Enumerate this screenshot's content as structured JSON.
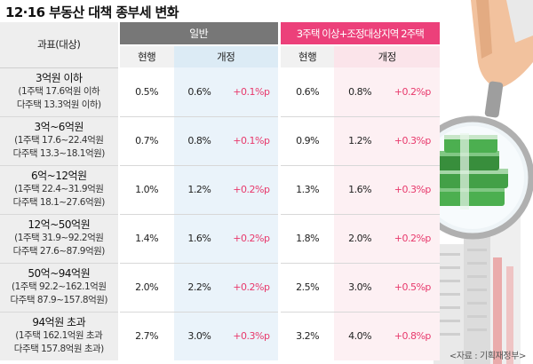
{
  "title": "12·16 부동산 대책 종부세 변화",
  "header": {
    "bracket_label": "과표(대상)",
    "group_general": "일반",
    "group_multi": "3주택 이상+조정대상지역 2주택",
    "current": "현행",
    "revised": "개정"
  },
  "rows": [
    {
      "main": "3억원 이하",
      "sub1": "(1주택 17.6억원 이하",
      "sub2": "다주택 13.3억원 이하)",
      "g_cur": "0.5%",
      "g_new": "0.6%",
      "g_chg": "+0.1%p",
      "m_cur": "0.6%",
      "m_new": "0.8%",
      "m_chg": "+0.2%p"
    },
    {
      "main": "3억~6억원",
      "sub1": "(1주택 17.6~22.4억원",
      "sub2": "다주택 13.3~18.1억원)",
      "g_cur": "0.7%",
      "g_new": "0.8%",
      "g_chg": "+0.1%p",
      "m_cur": "0.9%",
      "m_new": "1.2%",
      "m_chg": "+0.3%p"
    },
    {
      "main": "6억~12억원",
      "sub1": "(1주택 22.4~31.9억원",
      "sub2": "다주택 18.1~27.6억원)",
      "g_cur": "1.0%",
      "g_new": "1.2%",
      "g_chg": "+0.2%p",
      "m_cur": "1.3%",
      "m_new": "1.6%",
      "m_chg": "+0.3%p"
    },
    {
      "main": "12억~50억원",
      "sub1": "(1주택 31.9~92.2억원",
      "sub2": "다주택 27.6~87.9억원)",
      "g_cur": "1.4%",
      "g_new": "1.6%",
      "g_chg": "+0.2%p",
      "m_cur": "1.8%",
      "m_new": "2.0%",
      "m_chg": "+0.2%p"
    },
    {
      "main": "50억~94억원",
      "sub1": "(1주택 92.2~162.1억원",
      "sub2": "다주택 87.9~157.8억원)",
      "g_cur": "2.0%",
      "g_new": "2.2%",
      "g_chg": "+0.2%p",
      "m_cur": "2.5%",
      "m_new": "3.0%",
      "m_chg": "+0.5%p"
    },
    {
      "main": "94억원 초과",
      "sub1": "(1주택 162.1억원 초과",
      "sub2": "다주택 157.8억원 초과)",
      "g_cur": "2.7%",
      "g_new": "3.0%",
      "g_chg": "+0.3%p",
      "m_cur": "3.2%",
      "m_new": "4.0%",
      "m_chg": "+0.8%p"
    }
  ],
  "source": "<자료 : 기획재정부>",
  "colors": {
    "general_header": "#777777",
    "multi_header": "#ec407a",
    "increase_text": "#e8396c"
  }
}
